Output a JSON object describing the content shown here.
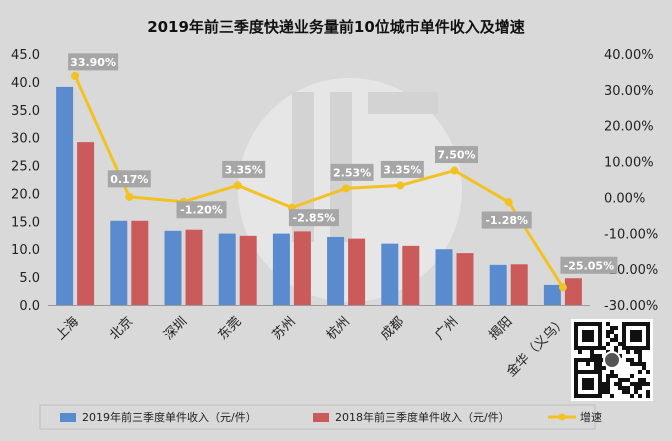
{
  "chart_data": {
    "type": "bar",
    "title": "2019年前三季度快递业务量前10位城市单件收入及增速",
    "categories": [
      "上海",
      "北京",
      "深圳",
      "东莞",
      "苏州",
      "杭州",
      "成都",
      "广州",
      "揭阳",
      "金华（义乌）"
    ],
    "series": [
      {
        "name": "2019年前三季度单件收入（元/件）",
        "type": "bar",
        "axis": "left",
        "color": "#5b8bcf",
        "values": [
          39.1,
          15.1,
          13.3,
          12.8,
          12.8,
          12.2,
          11.0,
          10.0,
          7.2,
          3.6
        ]
      },
      {
        "name": "2018年前三季度单件收入（元/件）",
        "type": "bar",
        "axis": "right-none",
        "color": "#cb5b5b",
        "values": [
          29.2,
          15.1,
          13.5,
          12.4,
          13.2,
          11.9,
          10.6,
          9.3,
          7.3,
          4.8
        ]
      },
      {
        "name": "增速",
        "type": "line",
        "axis": "right",
        "color": "#f3c220",
        "values": [
          33.9,
          0.17,
          -1.2,
          3.35,
          -2.85,
          2.53,
          3.35,
          7.5,
          -1.28,
          -25.05
        ],
        "labels": [
          "33.90%",
          "0.17%",
          "-1.20%",
          "3.35%",
          "-2.85%",
          "2.53%",
          "3.35%",
          "7.50%",
          "-1.28%",
          "-25.05%"
        ]
      }
    ],
    "left_axis": {
      "min": 0,
      "max": 45,
      "step": 5,
      "ticks": [
        "0.0",
        "5.0",
        "10.0",
        "15.0",
        "20.0",
        "25.0",
        "30.0",
        "35.0",
        "40.0",
        "45.0"
      ]
    },
    "right_axis": {
      "min": -30,
      "max": 40,
      "step": 10,
      "ticks": [
        "-30.00%",
        "-20.00%",
        "-10.00%",
        "0.00%",
        "10.00%",
        "20.00%",
        "30.00%",
        "40.00%"
      ]
    },
    "grid": false,
    "legend_position": "bottom"
  },
  "colors": {
    "background": "#d9d9d9",
    "label_box": "#a6a6a6",
    "axis": "#888888"
  }
}
